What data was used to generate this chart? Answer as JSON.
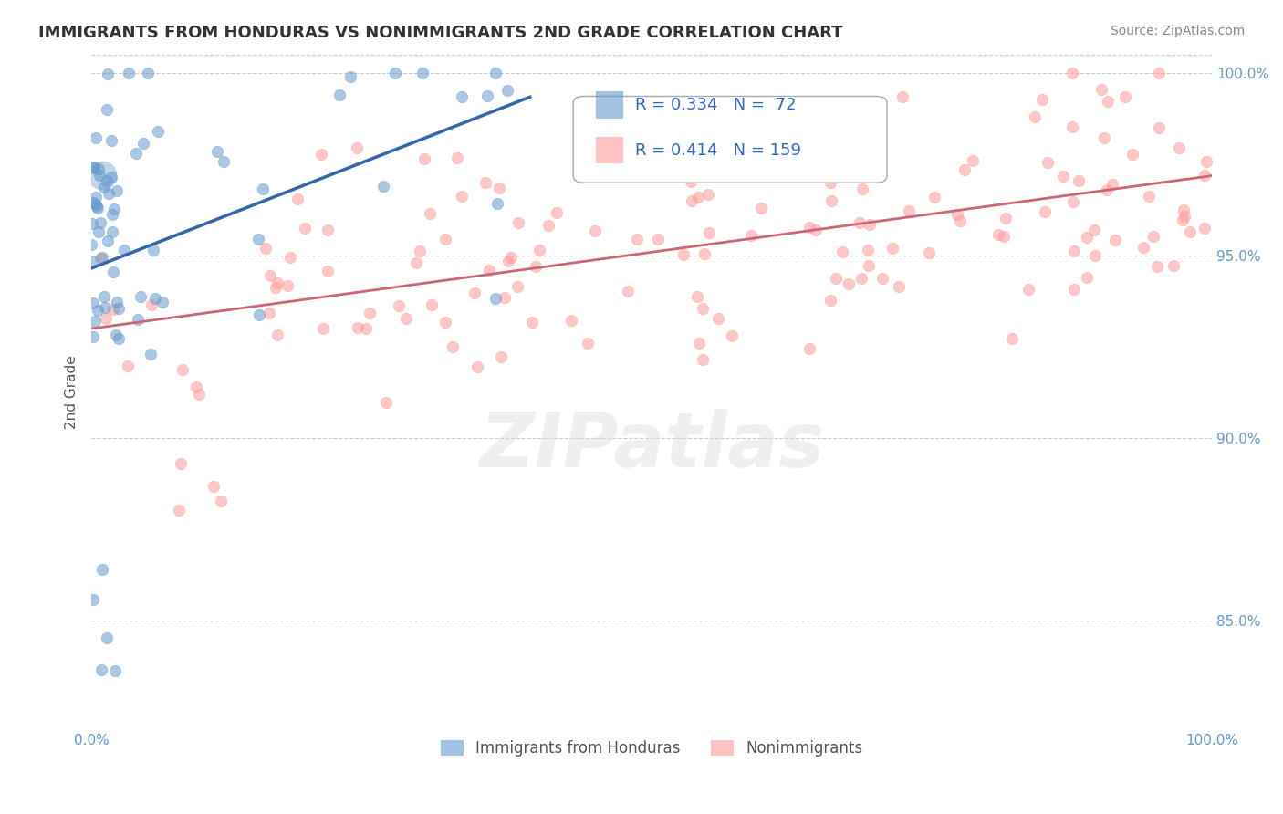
{
  "title": "IMMIGRANTS FROM HONDURAS VS NONIMMIGRANTS 2ND GRADE CORRELATION CHART",
  "source": "Source: ZipAtlas.com",
  "ylabel": "2nd Grade",
  "xmin": 0.0,
  "xmax": 1.0,
  "ymin": 0.82,
  "ymax": 1.005,
  "yticks": [
    0.85,
    0.9,
    0.95,
    1.0
  ],
  "ytick_labels": [
    "85.0%",
    "90.0%",
    "95.0%",
    "100.0%"
  ],
  "blue_R": 0.334,
  "blue_N": 72,
  "pink_R": 0.414,
  "pink_N": 159,
  "blue_color": "#6699CC",
  "pink_color": "#FF9999",
  "blue_line_color": "#3366AA",
  "pink_line_color": "#CC6677",
  "legend_label_blue": "Immigrants from Honduras",
  "legend_label_pink": "Nonimmigrants",
  "background_color": "#FFFFFF",
  "grid_color": "#CCCCCC",
  "seed": 42
}
